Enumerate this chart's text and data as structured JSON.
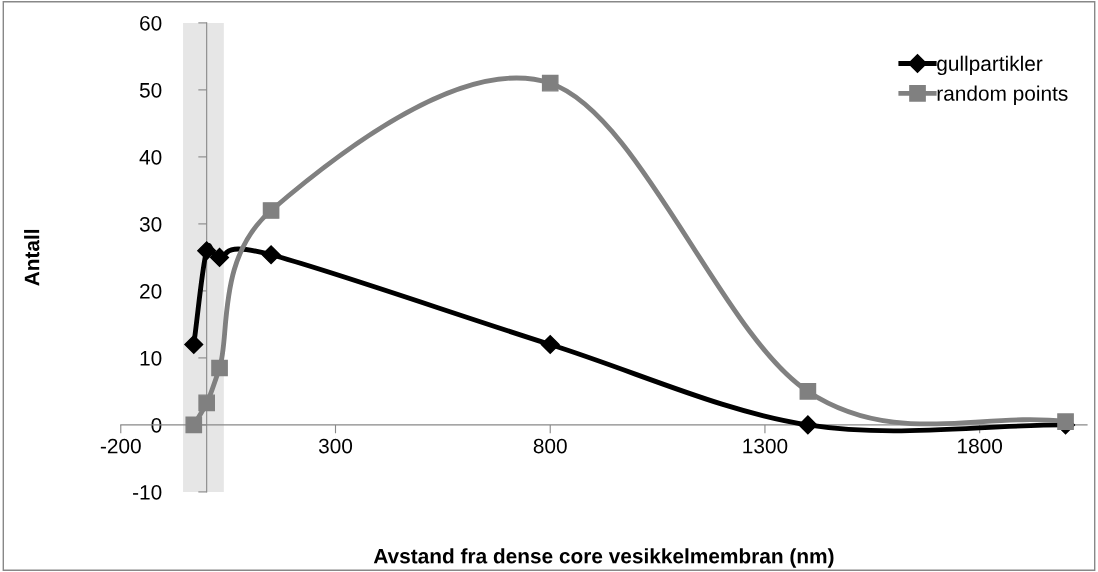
{
  "chart_data": {
    "type": "line",
    "xlabel": "Avstand fra dense core vesikkelmembran (nm)",
    "ylabel": "Antall",
    "xlim": [
      -200,
      2050
    ],
    "xticks": [
      -200,
      300,
      800,
      1300,
      1800
    ],
    "ylim": [
      -10,
      60
    ],
    "yticks": [
      -10,
      0,
      10,
      20,
      30,
      40,
      50,
      60
    ],
    "grid": false,
    "legend": "top right",
    "line_style": "solid",
    "bands": [
      {
        "axis": "x",
        "from": -55,
        "to": 40,
        "color": "#e6e6e6"
      }
    ],
    "series": [
      {
        "name": "gullpartikler",
        "color": "#000000",
        "marker": "diamond",
        "x": [
          -30,
          0,
          30,
          150,
          800,
          1400,
          2000
        ],
        "values": [
          12,
          26,
          25,
          25.4,
          12,
          0,
          0
        ]
      },
      {
        "name": "random points",
        "color": "#808080",
        "marker": "square",
        "x": [
          -30,
          0,
          30,
          150,
          800,
          1400,
          2000
        ],
        "values": [
          0,
          3.3,
          8.5,
          32,
          51,
          5,
          0.5
        ]
      }
    ]
  }
}
